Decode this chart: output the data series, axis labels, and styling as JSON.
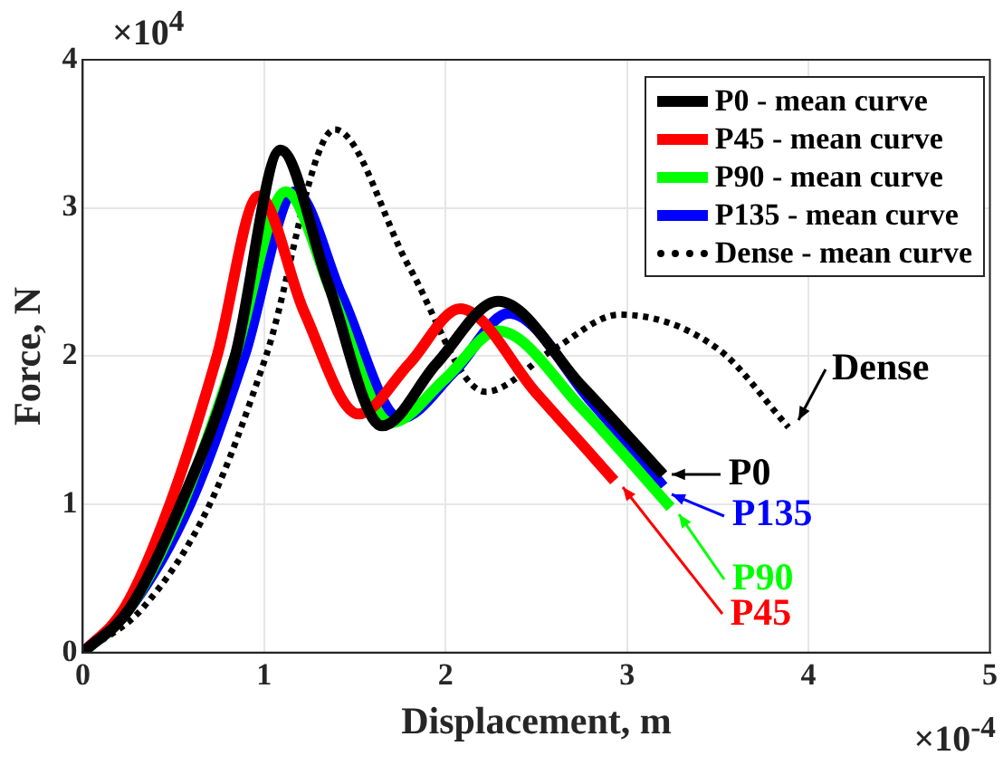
{
  "chart_data": {
    "type": "line",
    "xlabel": "Displacement, m",
    "ylabel": "Force, N",
    "xlim": [
      0,
      5
    ],
    "xticks": [
      0,
      1,
      2,
      3,
      4,
      5
    ],
    "ylim": [
      0,
      4
    ],
    "yticks": [
      0,
      1,
      2,
      3,
      4
    ],
    "grid": true,
    "legend": "top right",
    "marker": "none",
    "series": [
      {
        "name": "P0 - mean curve",
        "color": "#000000",
        "line_style": "solid",
        "x": [
          0,
          0.26,
          0.54,
          0.84,
          1.09,
          1.35,
          1.65,
          1.95,
          2.29,
          2.75,
          3.2
        ],
        "values": [
          0,
          0.3,
          1,
          2,
          3.39,
          2.5,
          1.53,
          1.95,
          2.37,
          1.8,
          1.2
        ]
      },
      {
        "name": "P45 - mean curve",
        "color": "#ff0000",
        "line_style": "solid",
        "x": [
          0,
          0.23,
          0.48,
          0.74,
          0.97,
          1.22,
          1.52,
          1.8,
          2.08,
          2.5,
          2.93
        ],
        "values": [
          0,
          0.3,
          1,
          2,
          3.08,
          2.3,
          1.61,
          1.95,
          2.32,
          1.75,
          1.16
        ]
      },
      {
        "name": "P90 - mean curve",
        "color": "#00ff00",
        "line_style": "solid",
        "x": [
          0,
          0.26,
          0.55,
          0.84,
          1.12,
          1.38,
          1.7,
          2,
          2.29,
          2.75,
          3.24
        ],
        "values": [
          0,
          0.3,
          1,
          2,
          3.11,
          2.4,
          1.55,
          1.85,
          2.17,
          1.65,
          0.98
        ]
      },
      {
        "name": "P135 - mean curve",
        "color": "#0000ff",
        "line_style": "solid",
        "x": [
          0,
          0.26,
          0.59,
          0.89,
          1.17,
          1.43,
          1.75,
          2.05,
          2.35,
          2.8,
          3.2
        ],
        "values": [
          0,
          0.3,
          1,
          2,
          3.11,
          2.4,
          1.58,
          1.9,
          2.29,
          1.7,
          1.12
        ]
      },
      {
        "name": "Dense - mean curve",
        "color": "#000000",
        "line_style": "dotted",
        "x": [
          0,
          0.33,
          0.7,
          1.01,
          1.39,
          1.8,
          2.22,
          2.6,
          2.96,
          3.5,
          3.89
        ],
        "values": [
          0,
          0.3,
          1,
          2,
          3.53,
          2.6,
          1.76,
          2.05,
          2.28,
          2.05,
          1.52
        ]
      }
    ],
    "annotations": [
      "×10$^{4}$",
      "×10$^{-4}$",
      {
        "text": "Dense",
        "x": 3.89,
        "y": 1.52
      },
      {
        "text": "P0",
        "x": 3.2,
        "y": 1.2
      },
      {
        "text": "P135",
        "x": 3.2,
        "y": 1.12
      },
      {
        "text": "P90",
        "x": 3.24,
        "y": 0.98
      },
      {
        "text": "P45",
        "x": 2.93,
        "y": 1.16
      }
    ]
  }
}
